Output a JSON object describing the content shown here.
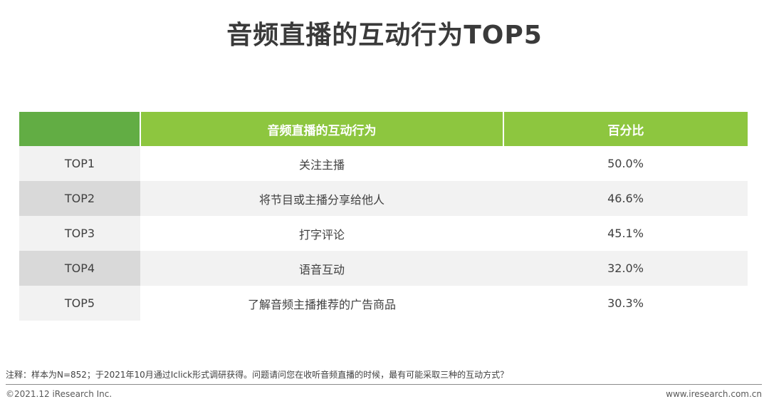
{
  "title": "音频直播的互动行为TOP5",
  "table": {
    "headers": [
      "",
      "音频直播的互动行为",
      "百分比"
    ],
    "rows": [
      {
        "rank": "TOP1",
        "behavior": "关注主播",
        "percent": "50.0%"
      },
      {
        "rank": "TOP2",
        "behavior": "将节目或主播分享给他人",
        "percent": "46.6%"
      },
      {
        "rank": "TOP3",
        "behavior": "打字评论",
        "percent": "45.1%"
      },
      {
        "rank": "TOP4",
        "behavior": "语音互动",
        "percent": "32.0%"
      },
      {
        "rank": "TOP5",
        "behavior": "了解音频主播推荐的广告商品",
        "percent": "30.3%"
      }
    ]
  },
  "footer": {
    "note": "注释：样本为N=852；于2021年10月通过Iclick形式调研获得。问题请问您在收听音频直播的时候，最有可能采取三种的互动方式？",
    "copyright": "©2021.12 iResearch Inc.",
    "website": "www.iresearch.com.cn"
  },
  "colors": {
    "header_dark": "#62ad44",
    "header_light": "#8dc63f",
    "row_grey": "#f2f2f2",
    "row_dark_grey": "#d9d9d9"
  }
}
